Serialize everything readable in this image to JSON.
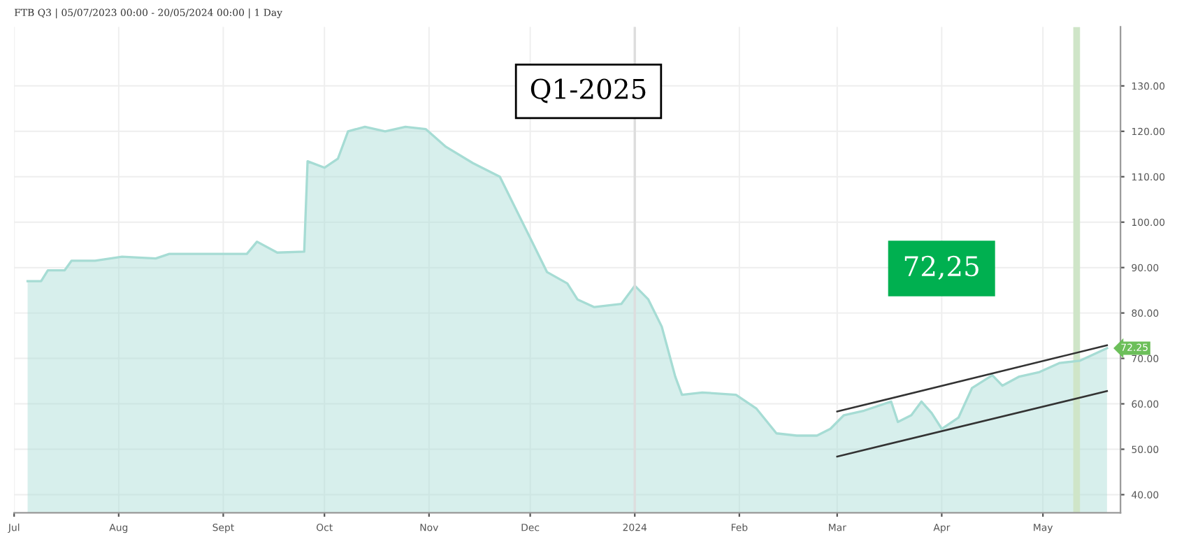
{
  "chart_data": {
    "type": "area",
    "title": "FTB Q3 | 05/07/2023 00:00 - 20/05/2024 00:00 | 1 Day",
    "x": [
      "2023-07-05",
      "2023-07-09",
      "2023-07-11",
      "2023-07-16",
      "2023-07-18",
      "2023-07-25",
      "2023-08-02",
      "2023-08-12",
      "2023-08-16",
      "2023-09-08",
      "2023-09-11",
      "2023-09-17",
      "2023-09-25",
      "2023-09-26",
      "2023-10-01",
      "2023-10-05",
      "2023-10-08",
      "2023-10-13",
      "2023-10-19",
      "2023-10-25",
      "2023-10-31",
      "2023-11-06",
      "2023-11-14",
      "2023-11-22",
      "2023-11-28",
      "2023-12-04",
      "2023-12-06",
      "2023-12-12",
      "2023-12-15",
      "2023-12-20",
      "2023-12-28",
      "2024-01-01",
      "2024-01-05",
      "2024-01-09",
      "2024-01-13",
      "2024-01-15",
      "2024-01-21",
      "2024-01-31",
      "2024-02-06",
      "2024-02-12",
      "2024-02-18",
      "2024-02-24",
      "2024-02-28",
      "2024-03-03",
      "2024-03-09",
      "2024-03-17",
      "2024-03-19",
      "2024-03-23",
      "2024-03-26",
      "2024-03-29",
      "2024-04-01",
      "2024-04-06",
      "2024-04-10",
      "2024-04-16",
      "2024-04-19",
      "2024-04-24",
      "2024-04-30",
      "2024-05-06",
      "2024-05-12",
      "2024-05-20"
    ],
    "series": [
      {
        "color": "#a6dcd4",
        "values": [
          87,
          87,
          89.4,
          89.4,
          91.5,
          91.5,
          92.4,
          92,
          93,
          93,
          95.7,
          93.3,
          93.5,
          113.4,
          112,
          114,
          120,
          121,
          120,
          121,
          120.5,
          116.6,
          113,
          110,
          101,
          92,
          89,
          86.5,
          83,
          81.3,
          82,
          86,
          83,
          77,
          66,
          62,
          62.5,
          62,
          59,
          53.5,
          53,
          53,
          54.5,
          57.5,
          58.5,
          60.5,
          56,
          57.5,
          60.5,
          58,
          54.5,
          57,
          63.5,
          66.3,
          64,
          66,
          67,
          69,
          69.5,
          72.25
        ]
      },
      {
        "type": "line",
        "color": "#333333",
        "x": [
          "2024-03-01",
          "2024-05-20"
        ],
        "values": [
          58.3,
          72.9
        ]
      },
      {
        "type": "line",
        "color": "#333333",
        "x": [
          "2024-03-01",
          "2024-05-20"
        ],
        "values": [
          48.4,
          62.8
        ]
      }
    ],
    "xlim": [
      "2023-07-01",
      "2024-05-24"
    ],
    "xticks": [
      {
        "value": "2023-07-01",
        "label": "Jul"
      },
      {
        "value": "2023-08-01",
        "label": "Aug"
      },
      {
        "value": "2023-09-01",
        "label": "Sept"
      },
      {
        "value": "2023-10-01",
        "label": "Oct"
      },
      {
        "value": "2023-11-01",
        "label": "Nov"
      },
      {
        "value": "2023-12-01",
        "label": "Dec"
      },
      {
        "value": "2024-01-01",
        "label": "2024"
      },
      {
        "value": "2024-02-01",
        "label": "Feb"
      },
      {
        "value": "2024-03-01",
        "label": "Mar"
      },
      {
        "value": "2024-04-01",
        "label": "Apr"
      },
      {
        "value": "2024-05-01",
        "label": "May"
      }
    ],
    "ylim": [
      36,
      143
    ],
    "yticks": [
      {
        "value": 40,
        "label": "40.00"
      },
      {
        "value": 50,
        "label": "50.00"
      },
      {
        "value": 60,
        "label": "60.00"
      },
      {
        "value": 70,
        "label": "70.00"
      },
      {
        "value": 80,
        "label": "80.00"
      },
      {
        "value": 90,
        "label": "90.00"
      },
      {
        "value": 100,
        "label": "100.00"
      },
      {
        "value": 110,
        "label": "110.00"
      },
      {
        "value": 120,
        "label": "120.00"
      },
      {
        "value": 130,
        "label": "130.00"
      }
    ],
    "grid": true,
    "ref_lines": [
      {
        "axis": "x",
        "value": "2024-01-01",
        "color": "#dddddd"
      }
    ],
    "bands": [
      {
        "axis": "x",
        "from": "2024-05-10",
        "to": "2024-05-12",
        "color": "#cfe5c8"
      }
    ],
    "annotations": [
      "Q1-2025",
      "72,25",
      {
        "text": "72.25",
        "x": "2024-05-20",
        "y": 72.25
      }
    ]
  }
}
